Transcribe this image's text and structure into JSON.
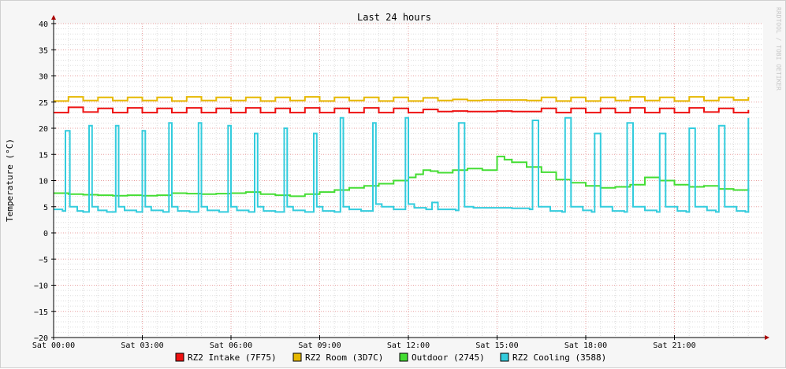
{
  "chart_data": {
    "type": "line",
    "title": "Last 24 hours",
    "ylabel": "Temperature (°C)",
    "watermark": "RRDTOOL / TOBI OETIKER",
    "ylim": [
      -20,
      40
    ],
    "xlim_hours": [
      0,
      23.5
    ],
    "y_ticks": [
      40,
      35,
      30,
      25,
      20,
      15,
      10,
      5,
      0,
      -5,
      -10,
      -15,
      -20
    ],
    "x_ticks": [
      {
        "label": "Sat 00:00",
        "hour": 0
      },
      {
        "label": "Sat 03:00",
        "hour": 3
      },
      {
        "label": "Sat 06:00",
        "hour": 6
      },
      {
        "label": "Sat 09:00",
        "hour": 9
      },
      {
        "label": "Sat 12:00",
        "hour": 12
      },
      {
        "label": "Sat 15:00",
        "hour": 15
      },
      {
        "label": "Sat 18:00",
        "hour": 18
      },
      {
        "label": "Sat 21:00",
        "hour": 21
      }
    ],
    "grid": true,
    "legend_position": "bottom",
    "series": [
      {
        "name": "RZ2 Intake (7F75)",
        "color": "#ee1111",
        "x": [
          0,
          0.5,
          1,
          1.5,
          2,
          2.5,
          3,
          3.5,
          4,
          4.5,
          5,
          5.5,
          6,
          6.5,
          7,
          7.5,
          8,
          8.5,
          9,
          9.5,
          10,
          10.5,
          11,
          11.5,
          12,
          12.5,
          13,
          13.5,
          14,
          14.5,
          15,
          15.5,
          16,
          16.5,
          17,
          17.5,
          18,
          18.5,
          19,
          19.5,
          20,
          20.5,
          21,
          21.5,
          22,
          22.5,
          23,
          23.5
        ],
        "values": [
          23.0,
          24.0,
          23.1,
          23.8,
          23.0,
          23.9,
          23.0,
          23.8,
          23.0,
          23.9,
          23.0,
          23.8,
          23.0,
          23.9,
          23.0,
          23.8,
          23.0,
          23.9,
          23.0,
          23.8,
          23.0,
          23.9,
          23.0,
          23.8,
          23.0,
          23.6,
          23.2,
          23.3,
          23.2,
          23.2,
          23.3,
          23.2,
          23.2,
          23.8,
          23.0,
          23.8,
          23.0,
          23.8,
          23.0,
          23.9,
          23.0,
          23.8,
          23.0,
          23.9,
          23.1,
          23.8,
          23.0,
          23.5
        ]
      },
      {
        "name": "RZ2 Room (3D7C)",
        "color": "#e6b800",
        "x": [
          0,
          0.5,
          1,
          1.5,
          2,
          2.5,
          3,
          3.5,
          4,
          4.5,
          5,
          5.5,
          6,
          6.5,
          7,
          7.5,
          8,
          8.5,
          9,
          9.5,
          10,
          10.5,
          11,
          11.5,
          12,
          12.5,
          13,
          13.5,
          14,
          14.5,
          15,
          15.5,
          16,
          16.5,
          17,
          17.5,
          18,
          18.5,
          19,
          19.5,
          20,
          20.5,
          21,
          21.5,
          22,
          22.5,
          23,
          23.5
        ],
        "values": [
          25.2,
          26.0,
          25.3,
          25.9,
          25.3,
          25.9,
          25.3,
          25.9,
          25.2,
          26.0,
          25.3,
          25.9,
          25.3,
          25.9,
          25.2,
          25.9,
          25.3,
          26.0,
          25.2,
          25.9,
          25.3,
          25.9,
          25.2,
          25.9,
          25.2,
          25.8,
          25.3,
          25.5,
          25.3,
          25.4,
          25.4,
          25.4,
          25.3,
          25.9,
          25.2,
          25.9,
          25.2,
          25.9,
          25.3,
          26.0,
          25.3,
          25.9,
          25.2,
          26.0,
          25.3,
          25.9,
          25.4,
          26.0
        ]
      },
      {
        "name": "Outdoor (2745)",
        "color": "#44dd33",
        "x": [
          0,
          0.5,
          1,
          1.5,
          2,
          2.5,
          3,
          3.5,
          4,
          4.5,
          5,
          5.5,
          6,
          6.5,
          7,
          7.5,
          8,
          8.5,
          9,
          9.5,
          10,
          10.5,
          11,
          11.5,
          12,
          12.25,
          12.5,
          12.75,
          13,
          13.5,
          14,
          14.5,
          15,
          15.25,
          15.5,
          16,
          16.5,
          17,
          17.5,
          18,
          18.5,
          19,
          19.5,
          20,
          20.5,
          21,
          21.5,
          22,
          22.5,
          23,
          23.5
        ],
        "values": [
          7.6,
          7.4,
          7.3,
          7.2,
          7.1,
          7.2,
          7.1,
          7.2,
          7.6,
          7.5,
          7.4,
          7.5,
          7.6,
          7.8,
          7.4,
          7.2,
          7.0,
          7.4,
          7.8,
          8.2,
          8.6,
          9.0,
          9.4,
          10.0,
          10.6,
          11.2,
          12.0,
          11.8,
          11.5,
          12.0,
          12.3,
          12.0,
          14.6,
          14.0,
          13.5,
          12.6,
          11.6,
          10.2,
          9.6,
          9.0,
          8.6,
          8.8,
          9.2,
          10.6,
          10.0,
          9.2,
          8.8,
          9.0,
          8.4,
          8.2,
          8.6
        ]
      },
      {
        "name": "RZ2 Cooling (3588)",
        "color": "#33ccdd",
        "x": [
          0,
          0.3,
          0.4,
          0.55,
          0.8,
          1.0,
          1.2,
          1.3,
          1.5,
          1.8,
          2.1,
          2.2,
          2.4,
          2.8,
          3.0,
          3.1,
          3.3,
          3.7,
          3.9,
          4.0,
          4.2,
          4.6,
          4.9,
          5.0,
          5.2,
          5.6,
          5.9,
          6.0,
          6.2,
          6.6,
          6.8,
          6.9,
          7.1,
          7.5,
          7.8,
          7.9,
          8.1,
          8.5,
          8.8,
          8.9,
          9.1,
          9.5,
          9.7,
          9.8,
          10.0,
          10.4,
          10.8,
          10.9,
          11.1,
          11.5,
          11.9,
          12.0,
          12.2,
          12.6,
          12.8,
          13.0,
          13.6,
          13.7,
          13.9,
          14.2,
          15.0,
          15.5,
          16.1,
          16.2,
          16.4,
          16.8,
          17.2,
          17.3,
          17.5,
          17.9,
          18.2,
          18.3,
          18.5,
          18.9,
          19.3,
          19.4,
          19.6,
          20.0,
          20.4,
          20.5,
          20.7,
          21.1,
          21.4,
          21.5,
          21.7,
          22.1,
          22.4,
          22.5,
          22.7,
          23.1,
          23.4,
          23.5
        ],
        "values": [
          4.5,
          4.2,
          19.5,
          5.0,
          4.2,
          4.0,
          20.5,
          5.0,
          4.3,
          4.0,
          20.5,
          5.0,
          4.3,
          4.0,
          19.5,
          5.0,
          4.3,
          4.0,
          21.0,
          5.0,
          4.2,
          4.0,
          21.0,
          5.0,
          4.3,
          4.0,
          20.5,
          5.0,
          4.3,
          4.0,
          19.0,
          5.0,
          4.2,
          4.0,
          20.0,
          5.0,
          4.3,
          4.0,
          19.0,
          5.0,
          4.2,
          4.0,
          22.0,
          5.0,
          4.5,
          4.2,
          21.0,
          5.5,
          5.0,
          4.5,
          22.0,
          5.5,
          4.8,
          4.5,
          5.8,
          4.5,
          4.3,
          21.0,
          5.0,
          4.8,
          4.8,
          4.7,
          4.5,
          21.5,
          5.0,
          4.2,
          4.0,
          22.0,
          5.0,
          4.3,
          4.0,
          19.0,
          5.0,
          4.2,
          4.0,
          21.0,
          5.0,
          4.3,
          4.0,
          19.0,
          5.0,
          4.2,
          4.0,
          20.0,
          5.0,
          4.3,
          4.0,
          20.5,
          5.0,
          4.2,
          4.0,
          22.0
        ]
      }
    ]
  }
}
